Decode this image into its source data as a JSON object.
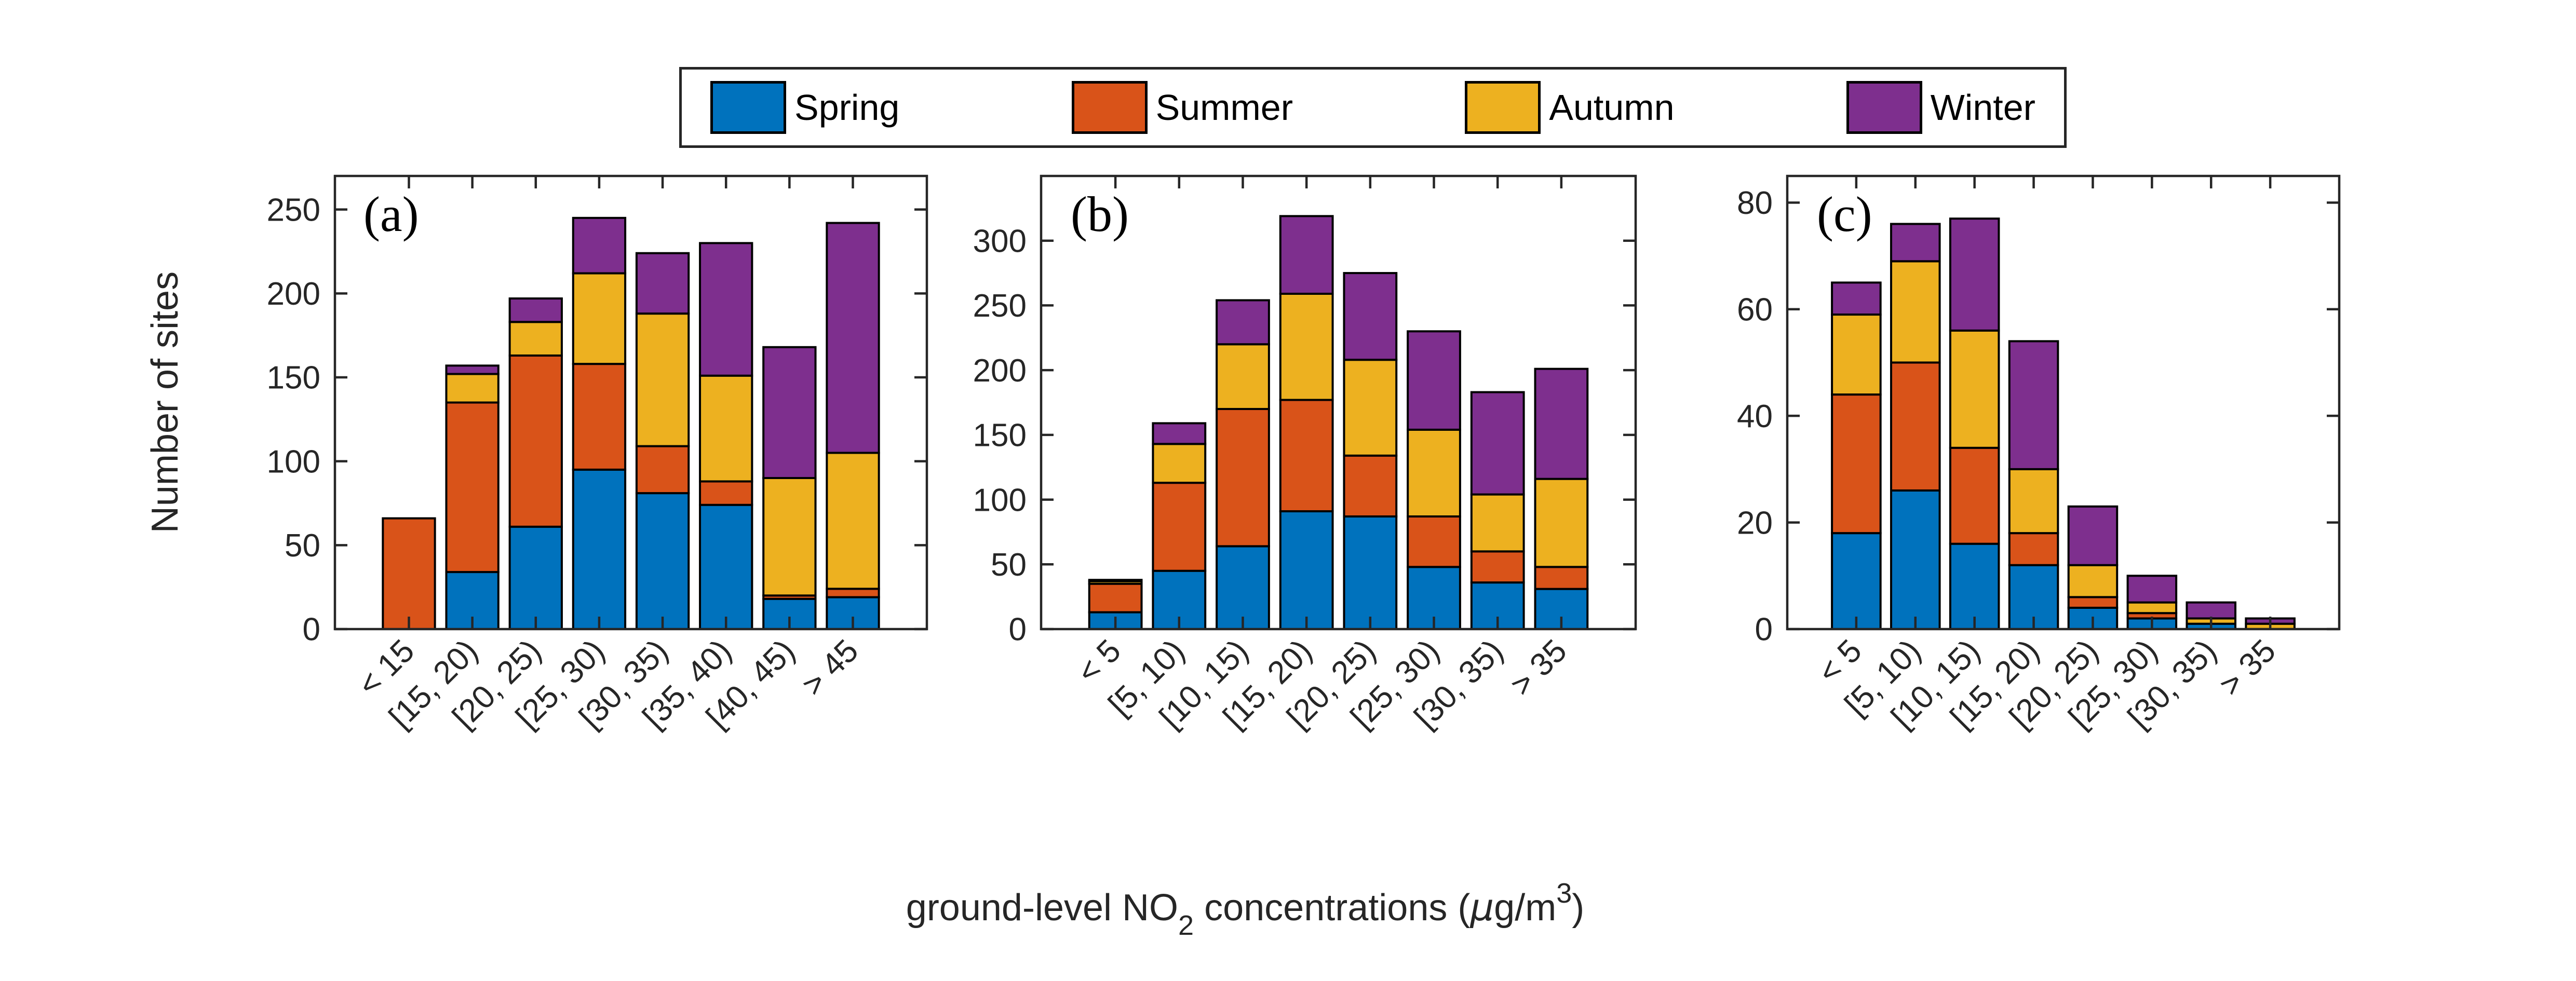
{
  "legend": {
    "items": [
      {
        "label": "Spring",
        "color": "#0072BD"
      },
      {
        "label": "Summer",
        "color": "#D95319"
      },
      {
        "label": "Autumn",
        "color": "#EDB120"
      },
      {
        "label": "Winter",
        "color": "#7E2F8E"
      }
    ]
  },
  "y_axis_label": "Number of sites",
  "x_axis_title": {
    "part1": "ground-level NO",
    "sub": "2",
    "part2": " concentrations (",
    "mu": "μ",
    "part3": "g/m",
    "sup": "3",
    "part4": ")"
  },
  "colors": {
    "axis": "#262626",
    "bar_outline": "#000000",
    "background": "#ffffff"
  },
  "chart_data": [
    {
      "type": "bar",
      "stacked": true,
      "panel_label": "(a)",
      "categories": [
        "< 15",
        "[15, 20)",
        "[20, 25)",
        "[25, 30)",
        "[30, 35)",
        "[35, 40)",
        "[40, 45)",
        "> 45"
      ],
      "series": [
        {
          "name": "Spring",
          "values": [
            0,
            34,
            61,
            95,
            81,
            74,
            18,
            19
          ]
        },
        {
          "name": "Summer",
          "values": [
            66,
            101,
            102,
            63,
            28,
            14,
            2,
            5
          ]
        },
        {
          "name": "Autumn",
          "values": [
            0,
            17,
            20,
            54,
            79,
            63,
            70,
            81
          ]
        },
        {
          "name": "Winter",
          "values": [
            0,
            5,
            14,
            33,
            36,
            79,
            78,
            137
          ]
        }
      ],
      "totals": [
        66,
        157,
        197,
        245,
        224,
        230,
        168,
        242
      ],
      "xlabel": "",
      "ylabel": "Number of sites",
      "ylim": [
        0,
        270
      ],
      "yticks": [
        0,
        50,
        100,
        150,
        200,
        250
      ],
      "grid": false
    },
    {
      "type": "bar",
      "stacked": true,
      "panel_label": "(b)",
      "categories": [
        "< 5",
        "[5, 10)",
        "[10, 15)",
        "[15, 20)",
        "[20, 25)",
        "[25, 30)",
        "[30, 35)",
        "> 35"
      ],
      "series": [
        {
          "name": "Spring",
          "values": [
            13,
            45,
            64,
            91,
            87,
            48,
            36,
            31
          ]
        },
        {
          "name": "Summer",
          "values": [
            22,
            68,
            106,
            86,
            47,
            39,
            24,
            17
          ]
        },
        {
          "name": "Autumn",
          "values": [
            2,
            30,
            50,
            82,
            74,
            67,
            44,
            68
          ]
        },
        {
          "name": "Winter",
          "values": [
            1,
            16,
            34,
            60,
            67,
            76,
            79,
            85
          ]
        }
      ],
      "totals": [
        38,
        159,
        254,
        319,
        275,
        230,
        183,
        201
      ],
      "xlabel": "",
      "ylabel": "",
      "ylim": [
        0,
        350
      ],
      "yticks": [
        0,
        50,
        100,
        150,
        200,
        250,
        300
      ],
      "grid": false
    },
    {
      "type": "bar",
      "stacked": true,
      "panel_label": "(c)",
      "categories": [
        "< 5",
        "[5, 10)",
        "[10, 15)",
        "[15, 20)",
        "[20, 25)",
        "[25, 30)",
        "[30, 35)",
        "> 35"
      ],
      "series": [
        {
          "name": "Spring",
          "values": [
            18,
            26,
            16,
            12,
            4,
            2,
            1,
            0
          ]
        },
        {
          "name": "Summer",
          "values": [
            26,
            24,
            18,
            6,
            2,
            1,
            0,
            0
          ]
        },
        {
          "name": "Autumn",
          "values": [
            15,
            19,
            22,
            12,
            6,
            2,
            1,
            1
          ]
        },
        {
          "name": "Winter",
          "values": [
            6,
            7,
            21,
            24,
            11,
            5,
            3,
            1
          ]
        }
      ],
      "totals": [
        65,
        76,
        77,
        54,
        23,
        10,
        5,
        2
      ],
      "xlabel": "",
      "ylabel": "",
      "ylim": [
        0,
        85
      ],
      "yticks": [
        0,
        20,
        40,
        60,
        80
      ],
      "grid": false
    }
  ]
}
